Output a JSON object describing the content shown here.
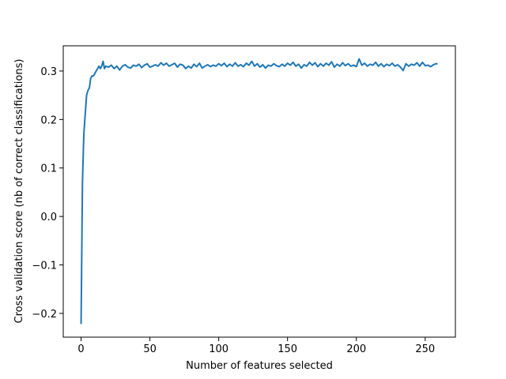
{
  "chart_data": {
    "type": "line",
    "xlabel": "Number of features selected",
    "ylabel": "Cross validation score (nb of correct classifications)",
    "color": "#1f77b4",
    "x": [
      0,
      1,
      2,
      3,
      4,
      5,
      6,
      7,
      8,
      9,
      10,
      11,
      12,
      13,
      14,
      15,
      16,
      17,
      18,
      20,
      22,
      24,
      26,
      28,
      30,
      32,
      34,
      36,
      38,
      40,
      42,
      44,
      46,
      48,
      50,
      52,
      54,
      56,
      58,
      60,
      62,
      64,
      66,
      68,
      70,
      72,
      74,
      76,
      78,
      80,
      82,
      84,
      86,
      88,
      90,
      92,
      94,
      96,
      98,
      100,
      102,
      104,
      106,
      108,
      110,
      112,
      114,
      116,
      118,
      120,
      122,
      124,
      126,
      128,
      130,
      132,
      134,
      136,
      138,
      140,
      142,
      144,
      146,
      148,
      150,
      152,
      154,
      156,
      158,
      160,
      162,
      164,
      166,
      168,
      170,
      172,
      174,
      176,
      178,
      180,
      182,
      184,
      186,
      188,
      190,
      192,
      194,
      196,
      198,
      200,
      202,
      204,
      206,
      208,
      210,
      212,
      214,
      216,
      218,
      220,
      222,
      224,
      226,
      228,
      230,
      232,
      234,
      236,
      238,
      240,
      242,
      244,
      246,
      248,
      250,
      252,
      254,
      256,
      258,
      259
    ],
    "values": [
      -0.222,
      0.07,
      0.17,
      0.21,
      0.25,
      0.26,
      0.265,
      0.285,
      0.29,
      0.29,
      0.295,
      0.3,
      0.305,
      0.31,
      0.305,
      0.31,
      0.32,
      0.305,
      0.31,
      0.308,
      0.312,
      0.305,
      0.31,
      0.302,
      0.31,
      0.313,
      0.308,
      0.306,
      0.312,
      0.31,
      0.314,
      0.307,
      0.312,
      0.315,
      0.308,
      0.31,
      0.313,
      0.31,
      0.317,
      0.312,
      0.316,
      0.31,
      0.313,
      0.316,
      0.308,
      0.314,
      0.312,
      0.305,
      0.31,
      0.306,
      0.314,
      0.309,
      0.316,
      0.306,
      0.31,
      0.313,
      0.309,
      0.312,
      0.31,
      0.315,
      0.311,
      0.316,
      0.309,
      0.314,
      0.31,
      0.317,
      0.31,
      0.313,
      0.309,
      0.316,
      0.312,
      0.32,
      0.31,
      0.315,
      0.308,
      0.313,
      0.306,
      0.312,
      0.31,
      0.315,
      0.311,
      0.309,
      0.314,
      0.31,
      0.316,
      0.312,
      0.318,
      0.31,
      0.314,
      0.306,
      0.313,
      0.31,
      0.318,
      0.312,
      0.317,
      0.309,
      0.315,
      0.31,
      0.316,
      0.312,
      0.319,
      0.308,
      0.314,
      0.31,
      0.317,
      0.311,
      0.315,
      0.31,
      0.312,
      0.309,
      0.325,
      0.312,
      0.316,
      0.31,
      0.314,
      0.312,
      0.318,
      0.31,
      0.315,
      0.309,
      0.314,
      0.311,
      0.316,
      0.31,
      0.313,
      0.308,
      0.301,
      0.315,
      0.31,
      0.314,
      0.312,
      0.317,
      0.31,
      0.318,
      0.311,
      0.312,
      0.309,
      0.313,
      0.315,
      0.315
    ],
    "xlim": [
      -12.95,
      271.95
    ],
    "xticks": [
      0,
      50,
      100,
      150,
      200,
      250
    ],
    "ylim": [
      -0.249,
      0.352
    ],
    "yticks": [
      {
        "value": -0.2,
        "label": "−0.2"
      },
      {
        "value": -0.1,
        "label": "−0.1"
      },
      {
        "value": 0,
        "label": "0.0"
      },
      0.1,
      0.2,
      0.3
    ]
  }
}
